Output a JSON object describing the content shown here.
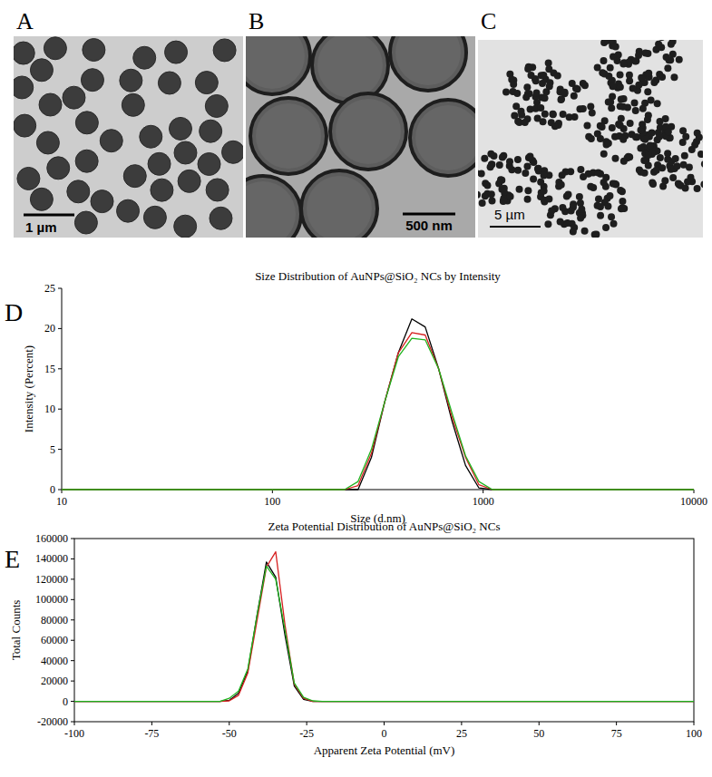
{
  "images": [
    {
      "letter": "A",
      "scale_bar": "1 µm"
    },
    {
      "letter": "B",
      "scale_bar": "500 nm"
    },
    {
      "letter": "C",
      "scale_bar": "5 µm"
    }
  ],
  "chart_data": [
    {
      "panel": "D",
      "type": "line",
      "title": "Size Distribution of AuNPs@SiO₂ NCs by Intensity",
      "x_label": "Size (d.nm)",
      "y_label": "Intensity (Percent)",
      "log": "x",
      "x": [
        10,
        100,
        190,
        220,
        255,
        295,
        342,
        396,
        459,
        531,
        615,
        712,
        825,
        955,
        1106,
        1281,
        10000
      ],
      "xlim": [
        10,
        10000
      ],
      "xticks": [
        10,
        100,
        1000,
        10000
      ],
      "ylim": [
        0,
        25
      ],
      "yticks": [
        0,
        5,
        10,
        15,
        20,
        25
      ],
      "series": [
        {
          "color": "#000000",
          "values": [
            0,
            0,
            0,
            0,
            0,
            4,
            11,
            17,
            21.2,
            20.2,
            15,
            8.5,
            3,
            0.2,
            0,
            0,
            0
          ]
        },
        {
          "color": "#d62020",
          "values": [
            0,
            0,
            0,
            0,
            0.5,
            4.5,
            11,
            17,
            19.5,
            19.2,
            15,
            9,
            4,
            0.6,
            0,
            0,
            0
          ]
        },
        {
          "color": "#1fb31f",
          "values": [
            0,
            0,
            0,
            0,
            1,
            5,
            11,
            16.5,
            18.8,
            18.6,
            15,
            9.5,
            4.2,
            1,
            0,
            0,
            0
          ]
        }
      ]
    },
    {
      "panel": "E",
      "type": "line",
      "title": "Zeta Potential Distribution of AuNPs@SiO₂ NCs",
      "x_label": "Apparent Zeta Potential (mV)",
      "y_label": "Total Counts",
      "x": [
        -100,
        -53,
        -50,
        -47,
        -44,
        -41,
        -38,
        -35,
        -32,
        -29,
        -26,
        -23,
        -20,
        100
      ],
      "xlim": [
        -100,
        100
      ],
      "xticks": [
        -100,
        -75,
        -50,
        -25,
        0,
        25,
        50,
        75,
        100
      ],
      "ylim": [
        -20000,
        160000
      ],
      "yticks": [
        -20000,
        0,
        20000,
        40000,
        60000,
        80000,
        100000,
        120000,
        140000,
        160000
      ],
      "series": [
        {
          "color": "#000000",
          "values": [
            0,
            0,
            1000,
            8000,
            30000,
            85000,
            137000,
            122000,
            65000,
            15000,
            2000,
            0,
            0,
            0
          ]
        },
        {
          "color": "#d62020",
          "values": [
            0,
            0,
            500,
            6000,
            28000,
            80000,
            132000,
            147000,
            75000,
            17000,
            3000,
            0,
            0,
            0
          ]
        },
        {
          "color": "#1fb31f",
          "values": [
            0,
            0,
            3000,
            10000,
            32000,
            85000,
            133000,
            120000,
            70000,
            18000,
            4000,
            500,
            0,
            0
          ]
        }
      ]
    }
  ]
}
